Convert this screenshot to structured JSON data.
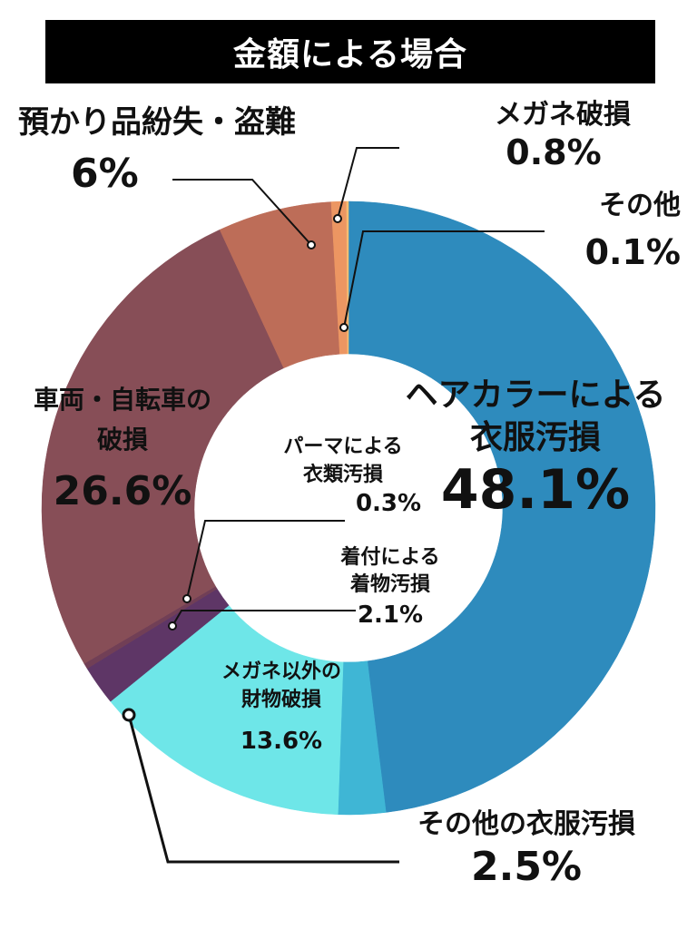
{
  "title": "金額による場合",
  "chart_data": {
    "type": "pie",
    "variant": "donut",
    "title": "金額による場合",
    "slices": [
      {
        "label": "ヘアカラーによる衣服汚損",
        "display": "48.1%",
        "value": 48.1,
        "color": "#2e8bbd"
      },
      {
        "label": "その他の衣服汚損",
        "display": "2.5%",
        "value": 2.5,
        "color": "#3fb6d5"
      },
      {
        "label": "メガネ以外の財物破損",
        "display": "13.6%",
        "value": 13.6,
        "color": "#6ee6e8"
      },
      {
        "label": "着付による着物汚損",
        "display": "2.1%",
        "value": 2.1,
        "color": "#5e3666"
      },
      {
        "label": "パーマによる衣類汚損",
        "display": "0.3%",
        "value": 0.3,
        "color": "#713f56"
      },
      {
        "label": "車両・自転車の破損",
        "display": "26.6%",
        "value": 26.6,
        "color": "#874e57"
      },
      {
        "label": "預かり品紛失・盗難",
        "display": "6%",
        "value": 6.0,
        "color": "#bd6d58"
      },
      {
        "label": "メガネ破損",
        "display": "0.8%",
        "value": 0.8,
        "color": "#ec9662"
      },
      {
        "label": "その他",
        "display": "0.1%",
        "value": 0.1,
        "color": "#f5bd73"
      }
    ]
  },
  "labels": {
    "hair": {
      "line1": "ヘアカラーによる",
      "line2": "衣服汚損",
      "pct": "48.1%"
    },
    "other_clothes": {
      "line1": "その他の衣服汚損",
      "pct": "2.5%"
    },
    "property": {
      "line1": "メガネ以外の",
      "line2": "財物破損",
      "pct": "13.6%"
    },
    "kitsuke": {
      "line1": "着付による",
      "line2": "着物汚損",
      "pct": "2.1%"
    },
    "perm": {
      "line1": "パーマによる",
      "line2": "衣類汚損",
      "pct": "0.3%"
    },
    "vehicle": {
      "line1": "車両・自転車の",
      "line2": "破損",
      "pct": "26.6%"
    },
    "lost": {
      "line1": "預かり品紛失・盗難",
      "pct": "6%"
    },
    "glasses": {
      "line1": "メガネ破損",
      "pct": "0.8%"
    },
    "other": {
      "line1": "その他",
      "pct": "0.1%"
    }
  }
}
